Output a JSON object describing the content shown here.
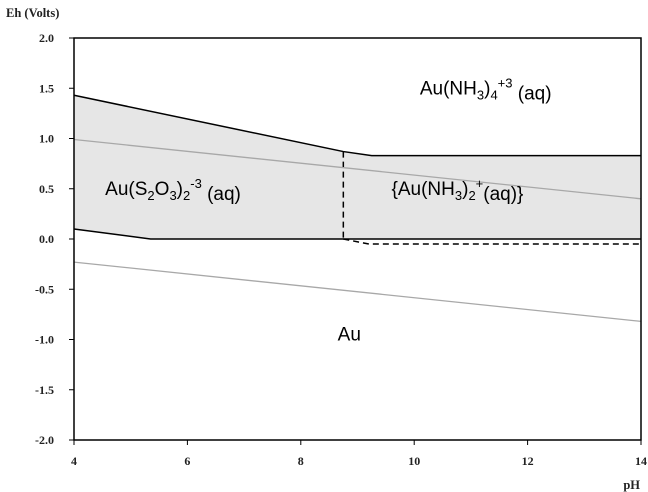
{
  "chart_data": {
    "type": "line",
    "title": "",
    "xlabel": "pH",
    "ylabel": "Eh (Volts)",
    "xlim": [
      4,
      14
    ],
    "ylim": [
      -2.0,
      2.0
    ],
    "xticks": [
      "4",
      "6",
      "8",
      "10",
      "12",
      "14"
    ],
    "yticks": [
      "2.0",
      "1.5",
      "1.0",
      "0.5",
      "0.0",
      "-0.5",
      "-1.0",
      "-1.5",
      "-2.0"
    ],
    "grid": false,
    "colors": {
      "field_fill": "#e6e6e6",
      "boundary": "#000000",
      "water_line": "#a8a8a8"
    },
    "series": [
      {
        "kind": "boundary",
        "style": "solid",
        "x": [
          4,
          8.75,
          9.25,
          14
        ],
        "y": [
          1.43,
          0.87,
          0.83,
          0.83
        ]
      },
      {
        "kind": "boundary",
        "style": "solid",
        "x": [
          4,
          5.35,
          8.75,
          14
        ],
        "y": [
          0.1,
          0.0,
          0.0,
          0.0
        ]
      },
      {
        "kind": "boundary",
        "style": "dashed",
        "x": [
          8.75,
          8.75
        ],
        "y": [
          0.87,
          0.0
        ]
      },
      {
        "kind": "boundary",
        "style": "dashed",
        "x": [
          8.75,
          9.2,
          14
        ],
        "y": [
          0.0,
          -0.05,
          -0.05
        ]
      },
      {
        "kind": "water",
        "style": "solid",
        "x": [
          4,
          14
        ],
        "y": [
          0.99,
          0.4
        ]
      },
      {
        "kind": "water",
        "style": "solid",
        "x": [
          4,
          14
        ],
        "y": [
          -0.23,
          -0.82
        ]
      }
    ],
    "fields": [
      {
        "x": [
          4,
          8.75,
          9.25,
          14,
          14,
          8.75,
          5.35,
          4
        ],
        "y": [
          1.43,
          0.87,
          0.83,
          0.83,
          0.0,
          0.0,
          0.0,
          0.1
        ]
      }
    ],
    "regions": [
      {
        "id": "au-nh3-4",
        "base": "Au(NH",
        "sub1": "3",
        "mid": ")",
        "sub2": "4",
        "sup": "+3",
        "tail": " (aq)",
        "x": 10.1,
        "y": 1.5
      },
      {
        "id": "au-s2o3",
        "base": "Au(S",
        "sub1": "2",
        "mid": "O",
        "sub2": "3",
        "mid2": ")",
        "sub3": "2",
        "sup": "-3",
        "tail": " (aq)",
        "x": 4.55,
        "y": 0.5
      },
      {
        "id": "au-nh3-2",
        "base": "{Au(NH",
        "sub1": "3",
        "mid": ")",
        "sub2": "2",
        "sup": "+",
        "tail": "(aq)}",
        "x": 9.6,
        "y": 0.5
      },
      {
        "id": "au",
        "base": "Au",
        "x": 8.65,
        "y": -0.95
      }
    ]
  }
}
